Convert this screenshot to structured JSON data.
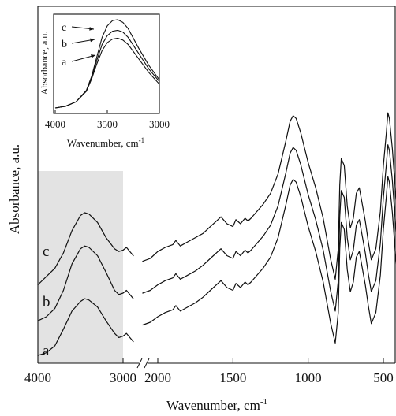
{
  "chart_data": [
    {
      "type": "line",
      "ylabel": "Absorbance, a.u.",
      "xlabel": "Wavenumber, cm",
      "xlabel_sup": "-1",
      "x_axis": "reversed, broken between 2900 and 2200",
      "x_segments": [
        {
          "xlim": [
            4000,
            2850
          ],
          "ticks": [
            "4000",
            "3000"
          ],
          "shaded": true
        },
        {
          "xlim": [
            2200,
            400
          ],
          "ticks": [
            "2000",
            "1500",
            "1000",
            "500"
          ]
        }
      ],
      "y_ticks": false,
      "series": [
        {
          "name": "c",
          "segment1": {
            "x": [
              4000,
              3900,
              3800,
              3700,
              3600,
              3500,
              3450,
              3400,
              3300,
              3200,
              3100,
              3050,
              3000,
              2960,
              2920,
              2880
            ],
            "y": [
              0.52,
              0.58,
              0.64,
              0.75,
              0.91,
              1.02,
              1.04,
              1.03,
              0.97,
              0.86,
              0.78,
              0.76,
              0.77,
              0.79,
              0.76,
              0.73
            ]
          },
          "segment2": {
            "x": [
              2100,
              2050,
              2000,
              1950,
              1900,
              1880,
              1850,
              1800,
              1750,
              1700,
              1650,
              1600,
              1580,
              1540,
              1500,
              1480,
              1450,
              1420,
              1400,
              1380,
              1300,
              1250,
              1200,
              1150,
              1120,
              1100,
              1080,
              1050,
              1000,
              950,
              900,
              850,
              820,
              800,
              790,
              780,
              760,
              740,
              720,
              700,
              680,
              660,
              640,
              620,
              600,
              580,
              550,
              520,
              500,
              480,
              470,
              460,
              440,
              420,
              400
            ],
            "y": [
              0.69,
              0.71,
              0.76,
              0.79,
              0.81,
              0.84,
              0.8,
              0.83,
              0.86,
              0.89,
              0.94,
              0.99,
              1.01,
              0.96,
              0.94,
              0.99,
              0.96,
              1.0,
              0.98,
              1.0,
              1.1,
              1.18,
              1.32,
              1.55,
              1.7,
              1.74,
              1.72,
              1.62,
              1.4,
              1.22,
              1.0,
              0.7,
              0.56,
              0.78,
              1.24,
              1.43,
              1.38,
              1.09,
              0.93,
              1.0,
              1.18,
              1.22,
              1.1,
              0.98,
              0.83,
              0.7,
              0.78,
              1.05,
              1.38,
              1.62,
              1.76,
              1.72,
              1.5,
              1.2,
              0.99
            ]
          }
        },
        {
          "name": "b",
          "segment1": {
            "x": [
              4000,
              3900,
              3800,
              3700,
              3600,
              3500,
              3450,
              3400,
              3300,
              3200,
              3100,
              3050,
              3000,
              2960,
              2920,
              2880
            ],
            "y": [
              0.26,
              0.29,
              0.35,
              0.48,
              0.67,
              0.78,
              0.8,
              0.79,
              0.73,
              0.61,
              0.48,
              0.45,
              0.46,
              0.48,
              0.45,
              0.42
            ]
          },
          "segment2": {
            "x": [
              2100,
              2050,
              2000,
              1950,
              1900,
              1880,
              1850,
              1800,
              1750,
              1700,
              1650,
              1600,
              1580,
              1540,
              1500,
              1480,
              1450,
              1420,
              1400,
              1380,
              1300,
              1250,
              1200,
              1150,
              1120,
              1100,
              1080,
              1050,
              1000,
              950,
              900,
              850,
              820,
              800,
              790,
              780,
              760,
              740,
              720,
              700,
              680,
              660,
              640,
              620,
              600,
              580,
              550,
              520,
              500,
              480,
              470,
              460,
              440,
              420,
              400
            ],
            "y": [
              0.46,
              0.48,
              0.52,
              0.55,
              0.57,
              0.6,
              0.56,
              0.59,
              0.62,
              0.66,
              0.71,
              0.76,
              0.78,
              0.73,
              0.71,
              0.76,
              0.73,
              0.77,
              0.75,
              0.77,
              0.87,
              0.95,
              1.09,
              1.32,
              1.47,
              1.51,
              1.49,
              1.39,
              1.17,
              0.99,
              0.77,
              0.47,
              0.33,
              0.55,
              1.01,
              1.2,
              1.15,
              0.86,
              0.7,
              0.77,
              0.95,
              0.99,
              0.87,
              0.75,
              0.6,
              0.47,
              0.55,
              0.82,
              1.15,
              1.39,
              1.53,
              1.49,
              1.27,
              0.97,
              0.76
            ]
          }
        },
        {
          "name": "a",
          "segment1": {
            "x": [
              4000,
              3900,
              3800,
              3700,
              3600,
              3500,
              3450,
              3400,
              3300,
              3200,
              3100,
              3050,
              3000,
              2960,
              2920,
              2880
            ],
            "y": [
              0.01,
              0.03,
              0.08,
              0.2,
              0.33,
              0.4,
              0.42,
              0.41,
              0.36,
              0.26,
              0.17,
              0.14,
              0.15,
              0.17,
              0.14,
              0.11
            ]
          },
          "segment2": {
            "x": [
              2100,
              2050,
              2000,
              1950,
              1900,
              1880,
              1850,
              1800,
              1750,
              1700,
              1650,
              1600,
              1580,
              1540,
              1500,
              1480,
              1450,
              1420,
              1400,
              1380,
              1300,
              1250,
              1200,
              1150,
              1120,
              1100,
              1080,
              1050,
              1000,
              950,
              900,
              850,
              820,
              800,
              790,
              780,
              760,
              740,
              720,
              700,
              680,
              660,
              640,
              620,
              600,
              580,
              550,
              520,
              500,
              480,
              470,
              460,
              440,
              420,
              400
            ],
            "y": [
              0.23,
              0.25,
              0.29,
              0.32,
              0.34,
              0.37,
              0.33,
              0.36,
              0.39,
              0.43,
              0.48,
              0.53,
              0.55,
              0.5,
              0.48,
              0.53,
              0.5,
              0.54,
              0.52,
              0.54,
              0.64,
              0.72,
              0.86,
              1.09,
              1.24,
              1.28,
              1.26,
              1.16,
              0.94,
              0.76,
              0.54,
              0.24,
              0.1,
              0.32,
              0.78,
              0.97,
              0.92,
              0.63,
              0.47,
              0.54,
              0.72,
              0.76,
              0.64,
              0.52,
              0.37,
              0.24,
              0.32,
              0.59,
              0.92,
              1.16,
              1.3,
              1.26,
              1.04,
              0.74,
              0.53
            ]
          }
        }
      ],
      "labels": [
        "c",
        "b",
        "a"
      ]
    },
    {
      "type": "line",
      "role": "inset",
      "ylabel": "Absorbance, a.u.",
      "xlabel": "Wavenumber, cm",
      "xlabel_sup": "-1",
      "xlim": [
        4000,
        3000
      ],
      "ticks": [
        "4000",
        "3500",
        "3000"
      ],
      "series": [
        {
          "name": "c",
          "x": [
            4000,
            3900,
            3800,
            3700,
            3650,
            3600,
            3550,
            3500,
            3450,
            3400,
            3350,
            3300,
            3200,
            3100,
            3000
          ],
          "y": [
            0.0,
            0.02,
            0.07,
            0.2,
            0.36,
            0.58,
            0.8,
            0.93,
            0.99,
            1.0,
            0.97,
            0.9,
            0.68,
            0.48,
            0.32
          ]
        },
        {
          "name": "b",
          "x": [
            4000,
            3900,
            3800,
            3700,
            3650,
            3600,
            3550,
            3500,
            3450,
            3400,
            3350,
            3300,
            3200,
            3100,
            3000
          ],
          "y": [
            0.0,
            0.02,
            0.07,
            0.2,
            0.35,
            0.54,
            0.72,
            0.82,
            0.87,
            0.88,
            0.86,
            0.8,
            0.62,
            0.44,
            0.3
          ]
        },
        {
          "name": "a",
          "x": [
            4000,
            3900,
            3800,
            3700,
            3650,
            3600,
            3550,
            3500,
            3450,
            3400,
            3350,
            3300,
            3200,
            3100,
            3000
          ],
          "y": [
            0.0,
            0.02,
            0.07,
            0.19,
            0.33,
            0.5,
            0.65,
            0.74,
            0.78,
            0.79,
            0.77,
            0.72,
            0.56,
            0.4,
            0.27
          ]
        }
      ],
      "labels": [
        "c",
        "b",
        "a"
      ]
    }
  ]
}
